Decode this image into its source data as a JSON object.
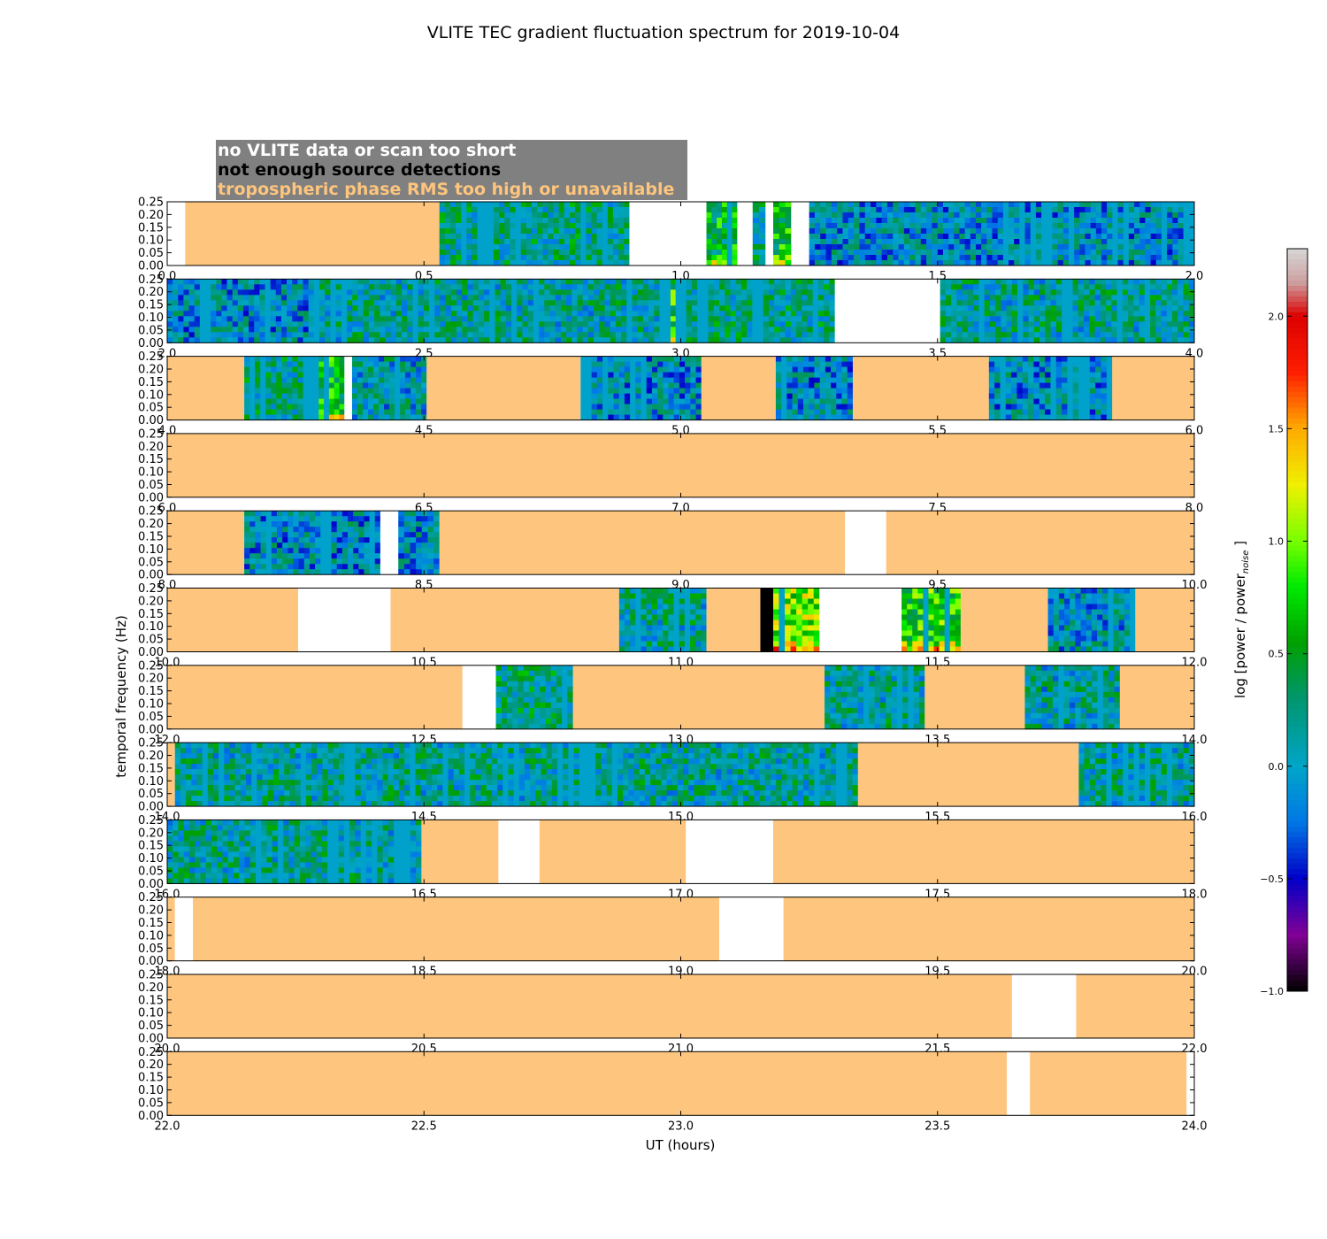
{
  "chart_data": {
    "type": "heatmap",
    "title": "VLITE TEC gradient fluctuation spectrum for 2019-10-04",
    "xlabel": "UT (hours)",
    "ylabel": "temporal frequency (Hz)",
    "colorbar_label": "log [power / power",
    "colorbar_label_subscript": "noise",
    "colorbar_label_close": "]",
    "colorbar_range": [
      -1.0,
      2.3
    ],
    "colorbar_ticks": [
      "−1.0",
      "−0.5",
      "0.0",
      "0.5",
      "1.0",
      "1.5",
      "2.0"
    ],
    "colorbar_tick_values": [
      -1.0,
      -0.5,
      0.0,
      0.5,
      1.0,
      1.5,
      2.0
    ],
    "ylim": [
      0,
      0.25
    ],
    "y_ticks": [
      "0.00",
      "0.05",
      "0.10",
      "0.15",
      "0.20",
      "0.25"
    ],
    "y_tick_values": [
      0.0,
      0.05,
      0.1,
      0.15,
      0.2,
      0.25
    ],
    "x_tick_offsets": [
      0,
      0.5,
      1.0,
      1.5,
      2.0
    ],
    "legend": [
      {
        "label": "no VLITE data or scan too short",
        "color": "#ffffff"
      },
      {
        "label": "not enough source detections",
        "color": "#000000"
      },
      {
        "label": "tropospheric phase RMS too high or unavailable",
        "color": "#fdc57d"
      }
    ],
    "category_colors": {
      "none": "#ffffff",
      "few": "#000000",
      "trop": "#fdc57d",
      "base": "#0096d6"
    },
    "panels": [
      {
        "start": 0.0,
        "x_ticks": [
          "0.0",
          "0.5",
          "1.0",
          "1.5",
          "2.0"
        ],
        "segments": [
          [
            0,
            0.035,
            "none"
          ],
          [
            0.035,
            0.53,
            "trop"
          ],
          [
            0.53,
            0.9,
            "noise",
            0.2
          ],
          [
            0.9,
            1.05,
            "none"
          ],
          [
            1.05,
            1.11,
            "noise",
            0.5
          ],
          [
            1.11,
            1.14,
            "none"
          ],
          [
            1.14,
            1.165,
            "noise",
            0.2
          ],
          [
            1.165,
            1.18,
            "none"
          ],
          [
            1.18,
            1.215,
            "noise",
            0.55
          ],
          [
            1.215,
            1.25,
            "none"
          ],
          [
            1.25,
            1.5,
            "noise",
            -0.05
          ],
          [
            1.5,
            2.0,
            "noise",
            -0.05
          ]
        ]
      },
      {
        "start": 2.0,
        "x_ticks": [
          "2.0",
          "2.5",
          "3.0",
          "3.5",
          "4.0"
        ],
        "segments": [
          [
            0,
            0.275,
            "noise",
            -0.05
          ],
          [
            0.275,
            0.98,
            "noise",
            0.15
          ],
          [
            0.98,
            1.0,
            "noise",
            0.7
          ],
          [
            1.0,
            1.3,
            "noise",
            0.2
          ],
          [
            1.3,
            1.505,
            "none"
          ],
          [
            1.505,
            2.0,
            "noise",
            0.15
          ]
        ]
      },
      {
        "start": 4.0,
        "x_ticks": [
          "4.0",
          "4.5",
          "5.0",
          "5.5",
          "6.0"
        ],
        "segments": [
          [
            0,
            0.15,
            "trop"
          ],
          [
            0.15,
            0.275,
            "noise",
            0.2
          ],
          [
            0.275,
            0.345,
            "noise",
            0.6
          ],
          [
            0.345,
            0.36,
            "none"
          ],
          [
            0.36,
            0.505,
            "noise",
            0.05
          ],
          [
            0.505,
            0.805,
            "trop"
          ],
          [
            0.805,
            1.04,
            "noise",
            -0.05
          ],
          [
            1.04,
            1.185,
            "trop"
          ],
          [
            1.185,
            1.335,
            "noise",
            -0.05
          ],
          [
            1.335,
            1.6,
            "trop"
          ],
          [
            1.6,
            1.84,
            "noise",
            -0.05
          ],
          [
            1.84,
            2.0,
            "trop"
          ]
        ]
      },
      {
        "start": 6.0,
        "x_ticks": [
          "6.0",
          "6.5",
          "7.0",
          "7.5",
          "8.0"
        ],
        "segments": [
          [
            0,
            2.0,
            "trop"
          ]
        ]
      },
      {
        "start": 8.0,
        "x_ticks": [
          "8.0",
          "8.5",
          "9.0",
          "9.5",
          "10.0"
        ],
        "segments": [
          [
            0,
            0.15,
            "trop"
          ],
          [
            0.15,
            0.415,
            "noise",
            -0.05
          ],
          [
            0.415,
            0.45,
            "none"
          ],
          [
            0.45,
            0.53,
            "noise",
            -0.05
          ],
          [
            0.53,
            1.32,
            "trop"
          ],
          [
            1.32,
            1.4,
            "none"
          ],
          [
            1.4,
            2.0,
            "trop"
          ]
        ]
      },
      {
        "start": 10.0,
        "x_ticks": [
          "10.0",
          "10.5",
          "11.0",
          "11.5",
          "12.0"
        ],
        "segments": [
          [
            0,
            0.255,
            "trop"
          ],
          [
            0.255,
            0.435,
            "none"
          ],
          [
            0.435,
            0.88,
            "trop"
          ],
          [
            0.88,
            1.05,
            "noise",
            0.15
          ],
          [
            1.05,
            1.155,
            "trop"
          ],
          [
            1.155,
            1.18,
            "few"
          ],
          [
            1.18,
            1.27,
            "noise",
            0.95
          ],
          [
            1.27,
            1.43,
            "none"
          ],
          [
            1.43,
            1.545,
            "noise",
            0.75
          ],
          [
            1.545,
            1.715,
            "trop"
          ],
          [
            1.715,
            1.885,
            "noise",
            0.0
          ],
          [
            1.885,
            2.0,
            "trop"
          ]
        ]
      },
      {
        "start": 12.0,
        "x_ticks": [
          "12.0",
          "12.5",
          "13.0",
          "13.5",
          "14.0"
        ],
        "segments": [
          [
            0,
            0.575,
            "trop"
          ],
          [
            0.575,
            0.64,
            "none"
          ],
          [
            0.64,
            0.79,
            "noise",
            0.25
          ],
          [
            0.79,
            1.28,
            "trop"
          ],
          [
            1.28,
            1.475,
            "noise",
            0.15
          ],
          [
            1.475,
            1.67,
            "trop"
          ],
          [
            1.67,
            1.855,
            "noise",
            0.1
          ],
          [
            1.855,
            2.0,
            "trop"
          ]
        ]
      },
      {
        "start": 14.0,
        "x_ticks": [
          "14.0",
          "14.5",
          "15.0",
          "15.5",
          "16.0"
        ],
        "segments": [
          [
            0,
            0.015,
            "trop"
          ],
          [
            0.015,
            1.345,
            "noise",
            0.15
          ],
          [
            1.345,
            1.775,
            "trop"
          ],
          [
            1.775,
            2.0,
            "noise",
            0.15
          ]
        ]
      },
      {
        "start": 16.0,
        "x_ticks": [
          "16.0",
          "16.5",
          "17.0",
          "17.5",
          "18.0"
        ],
        "segments": [
          [
            0,
            0.495,
            "noise",
            0.15
          ],
          [
            0.495,
            0.645,
            "trop"
          ],
          [
            0.645,
            0.725,
            "none"
          ],
          [
            0.725,
            1.01,
            "trop"
          ],
          [
            1.01,
            1.18,
            "none"
          ],
          [
            1.18,
            2.0,
            "trop"
          ]
        ]
      },
      {
        "start": 18.0,
        "x_ticks": [
          "18.0",
          "18.5",
          "19.0",
          "19.5",
          "20.0"
        ],
        "segments": [
          [
            0,
            0.015,
            "trop"
          ],
          [
            0.015,
            0.05,
            "none"
          ],
          [
            0.05,
            1.075,
            "trop"
          ],
          [
            1.075,
            1.2,
            "none"
          ],
          [
            1.2,
            2.0,
            "trop"
          ]
        ]
      },
      {
        "start": 20.0,
        "x_ticks": [
          "20.0",
          "20.5",
          "21.0",
          "21.5",
          "22.0"
        ],
        "segments": [
          [
            0,
            1.645,
            "trop"
          ],
          [
            1.645,
            1.77,
            "none"
          ],
          [
            1.77,
            2.0,
            "trop"
          ]
        ]
      },
      {
        "start": 22.0,
        "x_ticks": [
          "22.0",
          "22.5",
          "23.0",
          "23.5",
          "24.0"
        ],
        "segments": [
          [
            0,
            1.635,
            "trop"
          ],
          [
            1.635,
            1.68,
            "none"
          ],
          [
            1.68,
            1.985,
            "trop"
          ],
          [
            1.985,
            2.0,
            "none"
          ]
        ]
      }
    ]
  }
}
